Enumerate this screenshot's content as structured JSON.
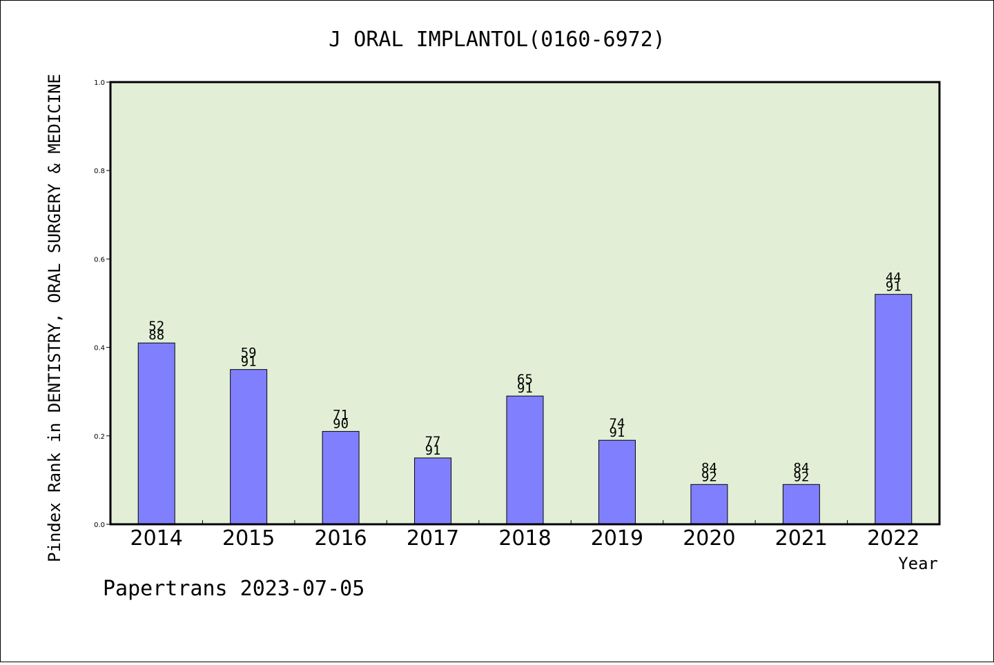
{
  "chart_data": {
    "type": "bar",
    "title": "J ORAL IMPLANTOL(0160-6972)",
    "ylabel": "Pindex Rank in DENTISTRY, ORAL SURGERY & MEDICINE",
    "xlabel": "Year",
    "footer": "Papertrans 2023-07-05",
    "categories": [
      "2014",
      "2015",
      "2016",
      "2017",
      "2018",
      "2019",
      "2020",
      "2021",
      "2022"
    ],
    "values": [
      0.41,
      0.35,
      0.21,
      0.15,
      0.29,
      0.19,
      0.09,
      0.09,
      0.52
    ],
    "bar_labels": [
      [
        "52",
        "88"
      ],
      [
        "59",
        "91"
      ],
      [
        "71",
        "90"
      ],
      [
        "77",
        "91"
      ],
      [
        "65",
        "91"
      ],
      [
        "74",
        "91"
      ],
      [
        "84",
        "92"
      ],
      [
        "84",
        "92"
      ],
      [
        "44",
        "91"
      ]
    ],
    "ylim": [
      0,
      1.0
    ],
    "yticks": [
      "0.0",
      "0.2",
      "0.4",
      "0.6",
      "0.8",
      "1.0"
    ],
    "colors": {
      "plot_background": "#e2efd6",
      "bar_fill": "#8080ff",
      "bar_stroke": "#000000"
    },
    "grid": false,
    "legend": "none"
  }
}
